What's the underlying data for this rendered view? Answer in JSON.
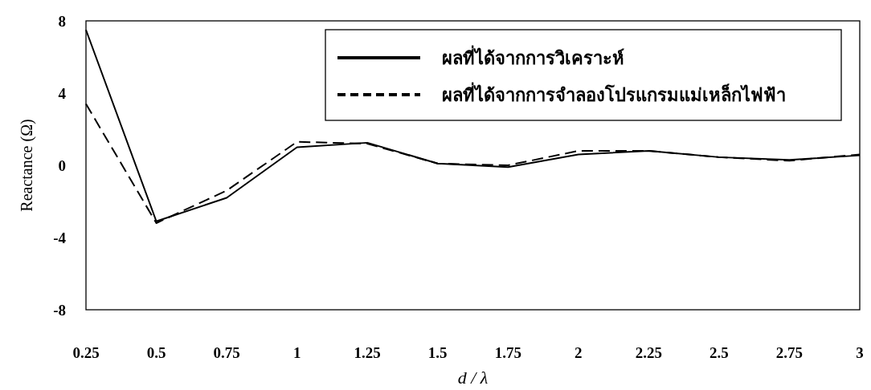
{
  "chart_data": {
    "type": "line",
    "xlabel": "d / λ",
    "ylabel": "Reactance (Ω)",
    "x": [
      0.25,
      0.5,
      0.75,
      1,
      1.25,
      1.5,
      1.75,
      2,
      2.25,
      2.5,
      2.75,
      3
    ],
    "xlim": [
      0.25,
      3
    ],
    "xticks": [
      0.25,
      0.5,
      0.75,
      1,
      1.25,
      1.5,
      1.75,
      2,
      2.25,
      2.5,
      2.75,
      3
    ],
    "ylim": [
      -8,
      8
    ],
    "yticks": [
      -8,
      -4,
      0,
      4,
      8
    ],
    "grid": false,
    "legend": "top right",
    "marker": "none",
    "series": [
      {
        "name": "ผลที่ได้จากการวิเคราะห์",
        "color": "#000000",
        "line_style": "solid",
        "values": [
          7.5,
          -3.1,
          -1.8,
          1.0,
          1.25,
          0.1,
          -0.1,
          0.6,
          0.8,
          0.45,
          0.3,
          0.55
        ]
      },
      {
        "name": "ผลที่ได้จากการจำลองโปรแกรมแม่เหล็กไฟฟ้า",
        "color": "#000000",
        "line_style": "dashed",
        "values": [
          3.4,
          -3.2,
          -1.4,
          1.3,
          1.2,
          0.1,
          0.0,
          0.8,
          0.8,
          0.45,
          0.25,
          0.6
        ]
      }
    ]
  }
}
